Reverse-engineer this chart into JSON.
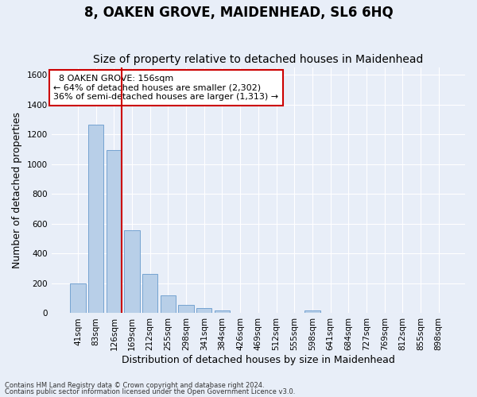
{
  "title": "8, OAKEN GROVE, MAIDENHEAD, SL6 6HQ",
  "subtitle": "Size of property relative to detached houses in Maidenhead",
  "xlabel": "Distribution of detached houses by size in Maidenhead",
  "ylabel": "Number of detached properties",
  "footnote1": "Contains HM Land Registry data © Crown copyright and database right 2024.",
  "footnote2": "Contains public sector information licensed under the Open Government Licence v3.0.",
  "bar_labels": [
    "41sqm",
    "83sqm",
    "126sqm",
    "169sqm",
    "212sqm",
    "255sqm",
    "298sqm",
    "341sqm",
    "384sqm",
    "426sqm",
    "469sqm",
    "512sqm",
    "555sqm",
    "598sqm",
    "641sqm",
    "684sqm",
    "727sqm",
    "769sqm",
    "812sqm",
    "855sqm",
    "898sqm"
  ],
  "bar_values": [
    200,
    1265,
    1095,
    555,
    265,
    120,
    58,
    32,
    20,
    0,
    0,
    0,
    0,
    17,
    0,
    0,
    0,
    0,
    0,
    0,
    0
  ],
  "bar_color": "#b8cfe8",
  "bar_edge_color": "#6699cc",
  "background_color": "#e8eef8",
  "grid_color": "#ffffff",
  "vline_color": "#cc0000",
  "ylim": [
    0,
    1650
  ],
  "yticks": [
    0,
    200,
    400,
    600,
    800,
    1000,
    1200,
    1400,
    1600
  ],
  "annotation_text": "  8 OAKEN GROVE: 156sqm\n← 64% of detached houses are smaller (2,302)\n36% of semi-detached houses are larger (1,313) →",
  "box_color": "#cc0000",
  "title_fontsize": 12,
  "subtitle_fontsize": 10,
  "label_fontsize": 9,
  "tick_fontsize": 7.5,
  "annotation_fontsize": 8
}
